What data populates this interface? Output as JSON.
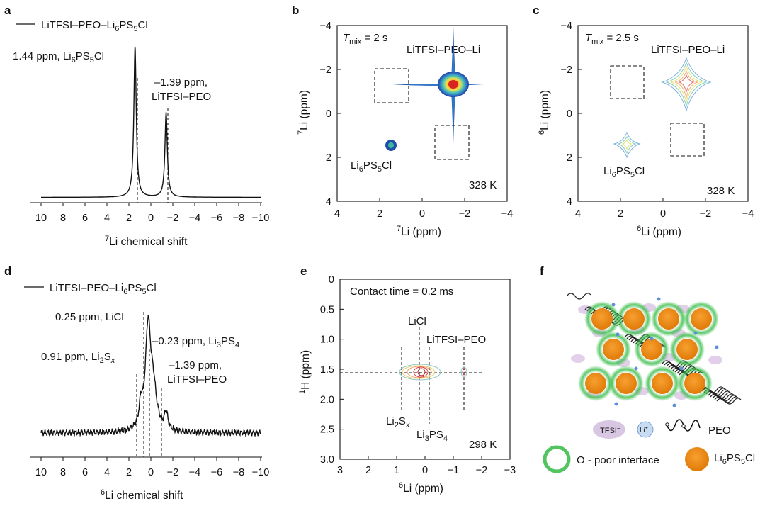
{
  "panels": {
    "a": "a",
    "b": "b",
    "c": "c",
    "d": "d",
    "e": "e",
    "f": "f"
  },
  "colors": {
    "text": "#111111",
    "contour_outer": "#1f4fa8",
    "contour_mid": "#3fb8d8",
    "contour_inner": "#f7d24a",
    "contour_core": "#d8261e",
    "li6ps5cl_particle": "#f08c10",
    "interface_ring": "#3fbf4f",
    "tfsi": "#d9c6e2",
    "li_ion": "#5b8fd6"
  },
  "chart_data": [
    {
      "panel": "a",
      "type": "line",
      "legend": "LiTFSI–PEO–Li6PS5Cl",
      "xlabel": "7Li chemical shift",
      "xlim": [
        10,
        -10
      ],
      "xticks": [
        10,
        8,
        6,
        4,
        2,
        0,
        -2,
        -4,
        -6,
        -8,
        -10
      ],
      "xtick_labels": [
        "10",
        "8",
        "6",
        "4",
        "2",
        "0",
        "−2",
        "−4",
        "−6",
        "−8",
        "−10"
      ],
      "peaks": [
        {
          "position": 1.44,
          "relative_height": 1.0,
          "label_value": "1.44 ppm,",
          "label_species": "Li6PS5Cl"
        },
        {
          "position": -1.39,
          "relative_height": 0.56,
          "label_value": "–1.39 ppm,",
          "label_species": "LiTFSI–PEO"
        }
      ]
    },
    {
      "panel": "b",
      "type": "heatmap",
      "mixing_time": "T mix = 2 s",
      "temperature": "328 K",
      "xlabel": "7Li (ppm)",
      "ylabel": "7Li (ppm)",
      "xlim": [
        4,
        -4
      ],
      "ylim": [
        -4,
        4
      ],
      "xticks": [
        "4",
        "2",
        "0",
        "−2",
        "−4"
      ],
      "yticks": [
        "−4",
        "−2",
        "0",
        "2",
        "4"
      ],
      "diagonal_peaks": [
        {
          "label": "LiTFSI–PEO–Li",
          "x": -1.4,
          "y": -1.4
        },
        {
          "label": "Li6PS5Cl",
          "x": 1.5,
          "y": 1.5
        }
      ],
      "cross_peak_regions_empty": [
        {
          "x": 1.5,
          "y": -1.4
        },
        {
          "x": -1.4,
          "y": 1.5
        }
      ]
    },
    {
      "panel": "c",
      "type": "heatmap",
      "mixing_time": "T mix = 2.5 s",
      "temperature": "328 K",
      "xlabel": "6Li (ppm)",
      "ylabel": "6Li (ppm)",
      "xlim": [
        4,
        -4
      ],
      "ylim": [
        -4,
        4
      ],
      "xticks": [
        "4",
        "2",
        "0",
        "−2",
        "−4"
      ],
      "yticks": [
        "−4",
        "−2",
        "0",
        "2",
        "4"
      ],
      "diagonal_peaks": [
        {
          "label": "LiTFSI–PEO–Li",
          "x": -1.4,
          "y": -1.4
        },
        {
          "label": "Li6PS5Cl",
          "x": 1.5,
          "y": 1.5
        }
      ],
      "cross_peak_regions_empty": [
        {
          "x": 1.5,
          "y": -1.4
        },
        {
          "x": -1.4,
          "y": 1.5
        }
      ]
    },
    {
      "panel": "d",
      "type": "line",
      "legend": "LiTFSI–PEO–Li6PS5Cl",
      "xlabel": "6Li chemical shift",
      "xlim": [
        10,
        -10
      ],
      "xticks": [
        "10",
        "8",
        "6",
        "4",
        "2",
        "0",
        "−2",
        "−4",
        "−6",
        "−8",
        "−10"
      ],
      "peaks": [
        {
          "position": 0.91,
          "species": "Li2Sx",
          "label": "0.91 ppm, Li2Sx"
        },
        {
          "position": 0.25,
          "species": "LiCl",
          "label": "0.25 ppm, LiCl"
        },
        {
          "position": -0.23,
          "species": "Li3PS4",
          "label": "−0.23 ppm, Li3PS4"
        },
        {
          "position": -1.39,
          "species": "LiTFSI–PEO",
          "label": "−1.39 ppm, LiTFSI–PEO"
        }
      ]
    },
    {
      "panel": "e",
      "type": "heatmap",
      "contact_time": "Contact time = 0.2 ms",
      "temperature": "298 K",
      "xlabel": "6Li (ppm)",
      "ylabel": "1H (ppm)",
      "xlim": [
        3,
        -3
      ],
      "ylim": [
        0,
        3
      ],
      "xticks": [
        "3",
        "2",
        "1",
        "0",
        "−1",
        "−2",
        "−3"
      ],
      "yticks": [
        "0",
        "0.5",
        "1.0",
        "1.5",
        "2.0",
        "2.5",
        "3.0"
      ],
      "cross_peaks_1H": 1.6,
      "cross_peaks_6Li": [
        {
          "species": "Li2Sx",
          "x": 0.91
        },
        {
          "species": "LiCl",
          "x": 0.25
        },
        {
          "species": "Li3PS4",
          "x": -0.23
        },
        {
          "species": "LiTFSI–PEO",
          "x": -1.39
        }
      ]
    }
  ],
  "panel_a": {
    "legend_main": "LiTFSI–PEO–Li",
    "legend_sub": "6",
    "legend_tail": "PS",
    "legend_sub2": "5",
    "legend_end": "Cl",
    "peak1_value": "1.44 ppm, Li",
    "peak1_sub": "6",
    "peak1_mid": "PS",
    "peak1_sub2": "5",
    "peak1_end": "Cl",
    "peak2_value": "–1.39 ppm,",
    "peak2_species": "LiTFSI–PEO",
    "xlabel_sup": "7",
    "xlabel": "Li chemical shift"
  },
  "panel_b": {
    "t_main": "T",
    "t_sub": "mix",
    "t_val": " = 2 s",
    "peak_label": "LiTFSI–PEO–Li",
    "li_main": "Li",
    "li_sub": "6",
    "li_mid": "PS",
    "li_sub2": "5",
    "li_end": "Cl",
    "temp": "328 K",
    "axis_sup": "7",
    "axis_label": "Li (ppm)"
  },
  "panel_c": {
    "t_main": "T",
    "t_sub": "mix",
    "t_val": " = 2.5 s",
    "peak_label": "LiTFSI–PEO–Li",
    "li_main": "Li",
    "li_sub": "6",
    "li_mid": "PS",
    "li_sub2": "5",
    "li_end": "Cl",
    "temp": "328 K",
    "axis_sup": "6",
    "axis_label": "Li (ppm)"
  },
  "panel_d": {
    "legend_main": "LiTFSI–PEO–Li",
    "legend_sub": "6",
    "legend_tail": "PS",
    "legend_sub2": "5",
    "legend_end": "Cl",
    "licl": "0.25 ppm, LiCl",
    "li3ps4_main": "–0.23 ppm, Li",
    "li3ps4_sub": "3",
    "li3ps4_mid": "PS",
    "li3ps4_sub2": "4",
    "li2sx_main": "0.91 ppm, Li",
    "li2sx_sub": "2",
    "li2sx_mid": "S",
    "li2sx_sub2": "x",
    "peo_value": "–1.39 ppm,",
    "peo_species": "LiTFSI–PEO",
    "xlabel_sup": "6",
    "xlabel": "Li chemical shift"
  },
  "panel_e": {
    "contact": "Contact time = 0.2 ms",
    "licl": "LiCl",
    "litfsi": "LiTFSI–PEO",
    "li2sx_main": "Li",
    "li2sx_sub": "2",
    "li2sx_mid": "S",
    "li2sx_sub2": "x",
    "li3ps4_main": "Li",
    "li3ps4_sub": "3",
    "li3ps4_mid": "PS",
    "li3ps4_sub2": "4",
    "temp": "298 K",
    "ylabel_sup": "1",
    "ylabel": "H (ppm)",
    "xlabel_sup": "6",
    "xlabel": "Li (ppm)"
  },
  "panel_f": {
    "tfsi": "TFSI",
    "tfsi_sup": "−",
    "li": "Li",
    "li_sup": "+",
    "peo": "PEO",
    "interface": "O - poor interface",
    "particle_main": "Li",
    "particle_sub": "6",
    "particle_mid": "PS",
    "particle_sub2": "5",
    "particle_end": "Cl"
  }
}
